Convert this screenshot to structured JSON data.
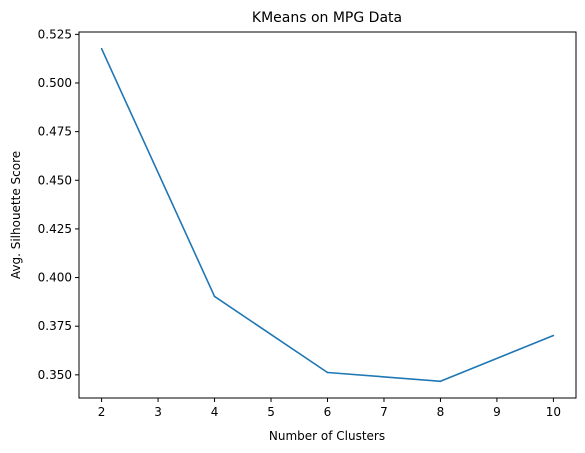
{
  "chart_data": {
    "type": "line",
    "title": "KMeans on MPG Data",
    "xlabel": "Number of Clusters",
    "ylabel": "Avg. Silhouette Score",
    "x": [
      2,
      4,
      6,
      8,
      10
    ],
    "series": [
      {
        "values": [
          0.5176,
          0.3903,
          0.3512,
          0.3467,
          0.3702
        ],
        "color": "#1f77b4"
      }
    ],
    "xlim": [
      1.6,
      10.4
    ],
    "ylim": [
      0.3381,
      0.5262
    ],
    "xticks": [
      2,
      3,
      4,
      5,
      6,
      7,
      8,
      9,
      10
    ],
    "yticks": [
      0.35,
      0.375,
      0.4,
      0.425,
      0.45,
      0.475,
      0.5,
      0.525
    ],
    "xtick_labels": [
      "2",
      "3",
      "4",
      "5",
      "6",
      "7",
      "8",
      "9",
      "10"
    ],
    "ytick_labels": [
      "0.350",
      "0.375",
      "0.400",
      "0.425",
      "0.450",
      "0.475",
      "0.500",
      "0.525"
    ],
    "grid": false,
    "legend": "none"
  }
}
